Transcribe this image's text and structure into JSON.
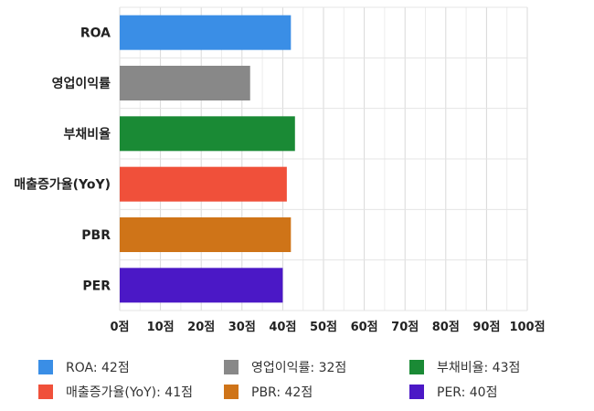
{
  "chart_data": {
    "type": "bar",
    "orientation": "horizontal",
    "categories": [
      "ROA",
      "영업이익률",
      "부채비율",
      "매출증가율(YoY)",
      "PBR",
      "PER"
    ],
    "values": [
      42,
      32,
      43,
      41,
      42,
      40
    ],
    "colors": [
      "#3a8ee6",
      "#888888",
      "#1a8a35",
      "#f0503a",
      "#cf7418",
      "#4b18c6"
    ],
    "xlim": [
      0,
      100
    ],
    "xticks": [
      "0점",
      "10점",
      "20점",
      "30점",
      "40점",
      "50점",
      "60점",
      "70점",
      "80점",
      "90점",
      "100점"
    ],
    "grid": true,
    "legend_position": "bottom",
    "legend": [
      {
        "label": "ROA: 42점",
        "color": "#3a8ee6"
      },
      {
        "label": "영업이익률: 32점",
        "color": "#888888"
      },
      {
        "label": "부채비율: 43점",
        "color": "#1a8a35"
      },
      {
        "label": "매출증가율(YoY): 41점",
        "color": "#f0503a"
      },
      {
        "label": "PBR: 42점",
        "color": "#cf7418"
      },
      {
        "label": "PER: 40점",
        "color": "#4b18c6"
      }
    ]
  }
}
